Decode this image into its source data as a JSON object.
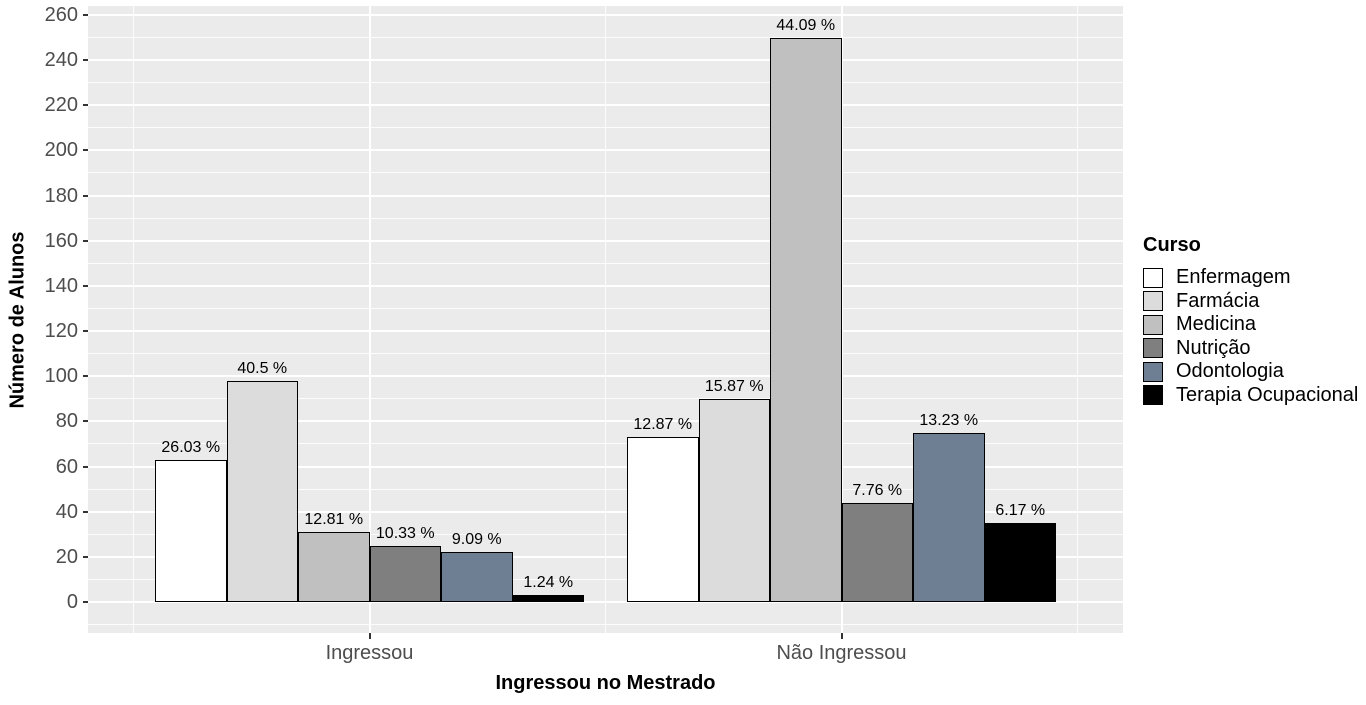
{
  "chart_data": {
    "type": "bar",
    "title": "",
    "xlabel": "Ingressou no Mestrado",
    "ylabel": "Número de Alunos",
    "legend_title": "Curso",
    "legend_position": "right",
    "grid": true,
    "categories": [
      "Ingressou",
      "Não Ingressou"
    ],
    "ylim": [
      0,
      260
    ],
    "yticks": [
      0,
      20,
      40,
      60,
      80,
      100,
      120,
      140,
      160,
      180,
      200,
      220,
      240,
      260
    ],
    "series": [
      {
        "name": "Enfermagem",
        "color": "#FFFFFF",
        "values": [
          63,
          73
        ],
        "bar_labels": [
          "26.03 %",
          "12.87 %"
        ]
      },
      {
        "name": "Farmácia",
        "color": "#DCDCDC",
        "values": [
          98,
          90
        ],
        "bar_labels": [
          "40.5 %",
          "15.87 %"
        ]
      },
      {
        "name": "Medicina",
        "color": "#C0C0C0",
        "values": [
          31,
          250
        ],
        "bar_labels": [
          "12.81 %",
          "44.09 %"
        ]
      },
      {
        "name": "Nutrição",
        "color": "#7F7F7F",
        "values": [
          25,
          44
        ],
        "bar_labels": [
          "10.33 %",
          "7.76 %"
        ]
      },
      {
        "name": "Odontologia",
        "color": "#6E7F94",
        "values": [
          22,
          75
        ],
        "bar_labels": [
          "9.09 %",
          "13.23 %"
        ]
      },
      {
        "name": "Terapia Ocupacional",
        "color": "#000000",
        "values": [
          3,
          35
        ],
        "bar_labels": [
          "1.24 %",
          "6.17 %"
        ]
      }
    ],
    "colors": {
      "panel_bg": "#EBEBEB",
      "grid_major": "#FFFFFF",
      "grid_minor": "#FFFFFF",
      "bar_border": "#000000",
      "axis_text": "#4D4D4D",
      "tick_mark": "#333333",
      "label_text": "#000000"
    }
  }
}
